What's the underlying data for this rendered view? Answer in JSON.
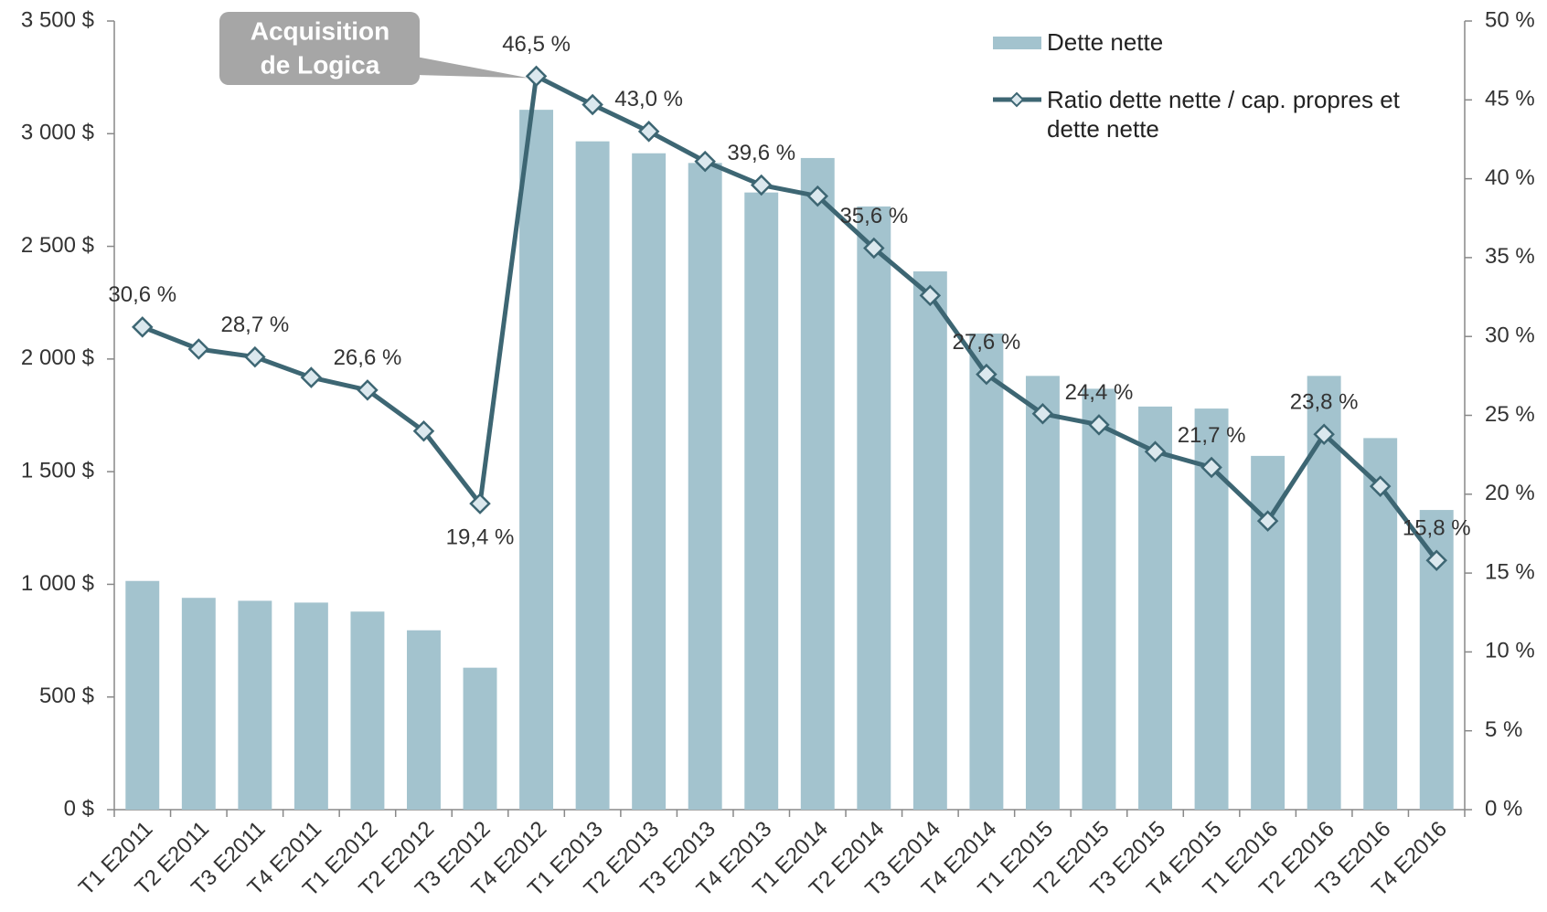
{
  "chart_data": {
    "type": "bar_line",
    "annotation": [
      "Acquisition",
      "de Logica"
    ],
    "categories": [
      "T1 E2011",
      "T2 E2011",
      "T3 E2011",
      "T4 E2011",
      "T1 E2012",
      "T2 E2012",
      "T3 E2012",
      "T4 E2012",
      "T1 E2013",
      "T2 E2013",
      "T3 E2013",
      "T4 E2013",
      "T1 E2014",
      "T2 E2014",
      "T3 E2014",
      "T4 E2014",
      "T1 E2015",
      "T2 E2015",
      "T3 E2015",
      "T4 E2015",
      "T1 E2016",
      "T2 E2016",
      "T3 E2016",
      "T4 E2016"
    ],
    "series": [
      {
        "name": "Dette nette",
        "type": "bar",
        "color": "#a3c3ce",
        "values": [
          1015,
          940,
          927,
          919,
          879,
          796,
          630,
          3106,
          2966,
          2913,
          2870,
          2739,
          2892,
          2677,
          2389,
          2113,
          1925,
          1868,
          1789,
          1780,
          1570,
          1925,
          1649,
          1330
        ]
      },
      {
        "name": "Ratio dette nette / cap. propres et dette nette",
        "type": "line",
        "axis": "y2",
        "color": "#3d6673",
        "marker_color": "#dbe8ee",
        "values": [
          30.6,
          29.2,
          28.7,
          27.4,
          26.6,
          24.0,
          19.4,
          46.5,
          44.7,
          43.0,
          41.1,
          39.6,
          38.9,
          35.6,
          32.6,
          27.6,
          25.1,
          24.4,
          22.7,
          21.7,
          18.3,
          23.8,
          20.5,
          15.8
        ],
        "value_labels": [
          "30,6 %",
          null,
          "28,7 %",
          null,
          "26,6 %",
          null,
          "19,4 %",
          "46,5 %",
          null,
          "43,0 %",
          null,
          "39,6 %",
          null,
          "35,6 %",
          null,
          "27,6 %",
          null,
          "24,4 %",
          null,
          "21,7 %",
          null,
          "23,8 %",
          null,
          "15,8 %"
        ]
      }
    ],
    "ylim": [
      0,
      3500
    ],
    "yticks": [
      {
        "value": 0,
        "label": "0 $"
      },
      {
        "value": 500,
        "label": "500 $"
      },
      {
        "value": 1000,
        "label": "1 000 $"
      },
      {
        "value": 1500,
        "label": "1 500 $"
      },
      {
        "value": 2000,
        "label": "2 000 $"
      },
      {
        "value": 2500,
        "label": "2 500 $"
      },
      {
        "value": 3000,
        "label": "3 000 $"
      },
      {
        "value": 3500,
        "label": "3 500 $"
      }
    ],
    "y2lim": [
      0,
      50
    ],
    "y2ticks": [
      {
        "value": 0,
        "label": "0 %"
      },
      {
        "value": 5,
        "label": "5 %"
      },
      {
        "value": 10,
        "label": "10 %"
      },
      {
        "value": 15,
        "label": "15 %"
      },
      {
        "value": 20,
        "label": "20 %"
      },
      {
        "value": 25,
        "label": "25 %"
      },
      {
        "value": 30,
        "label": "30 %"
      },
      {
        "value": 35,
        "label": "35 %"
      },
      {
        "value": 40,
        "label": "40 %"
      },
      {
        "value": 45,
        "label": "45 %"
      },
      {
        "value": 50,
        "label": "50 %"
      }
    ],
    "legend": "top-right"
  }
}
